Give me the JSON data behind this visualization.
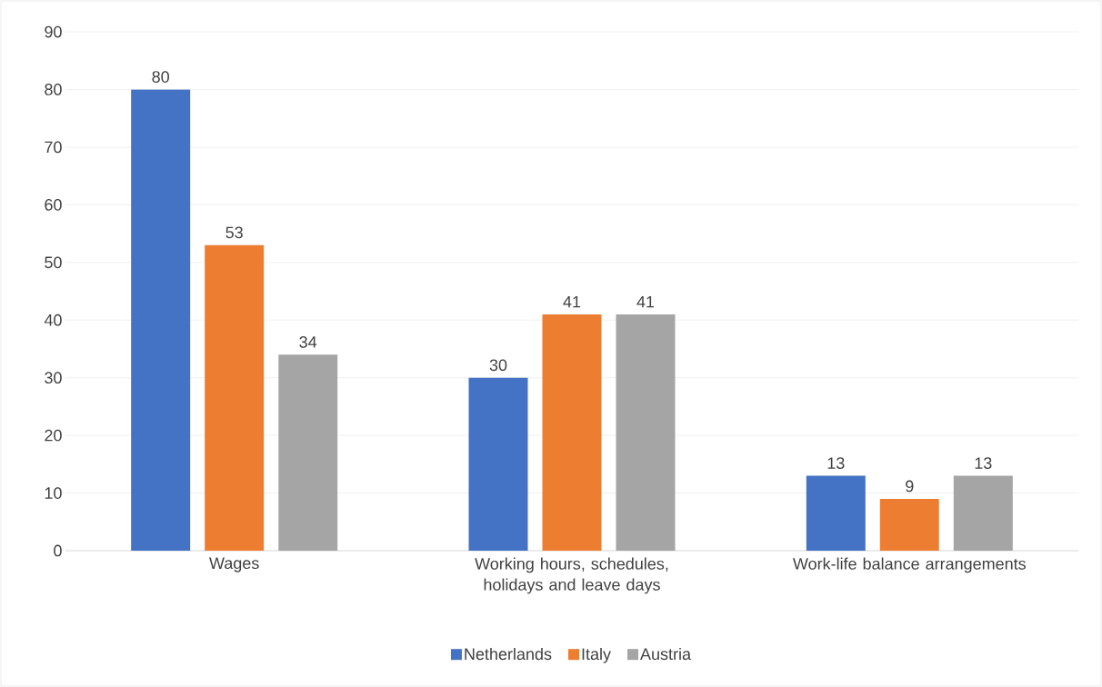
{
  "chart_data": {
    "type": "bar",
    "categories": [
      "Wages",
      "Working hours, schedules, holidays and leave days",
      "Work-life balance arrangements"
    ],
    "series": [
      {
        "name": "Netherlands",
        "color": "#4472c4",
        "values": [
          80,
          30,
          13
        ]
      },
      {
        "name": "Italy",
        "color": "#ed7d31",
        "values": [
          53,
          41,
          9
        ]
      },
      {
        "name": "Austria",
        "color": "#a5a5a5",
        "values": [
          34,
          41,
          13
        ]
      }
    ],
    "ylim": [
      0,
      90
    ],
    "yticks": [
      0,
      10,
      20,
      30,
      40,
      50,
      60,
      70,
      80,
      90
    ],
    "grid": "y",
    "legend": "bottom",
    "data_labels": true
  }
}
